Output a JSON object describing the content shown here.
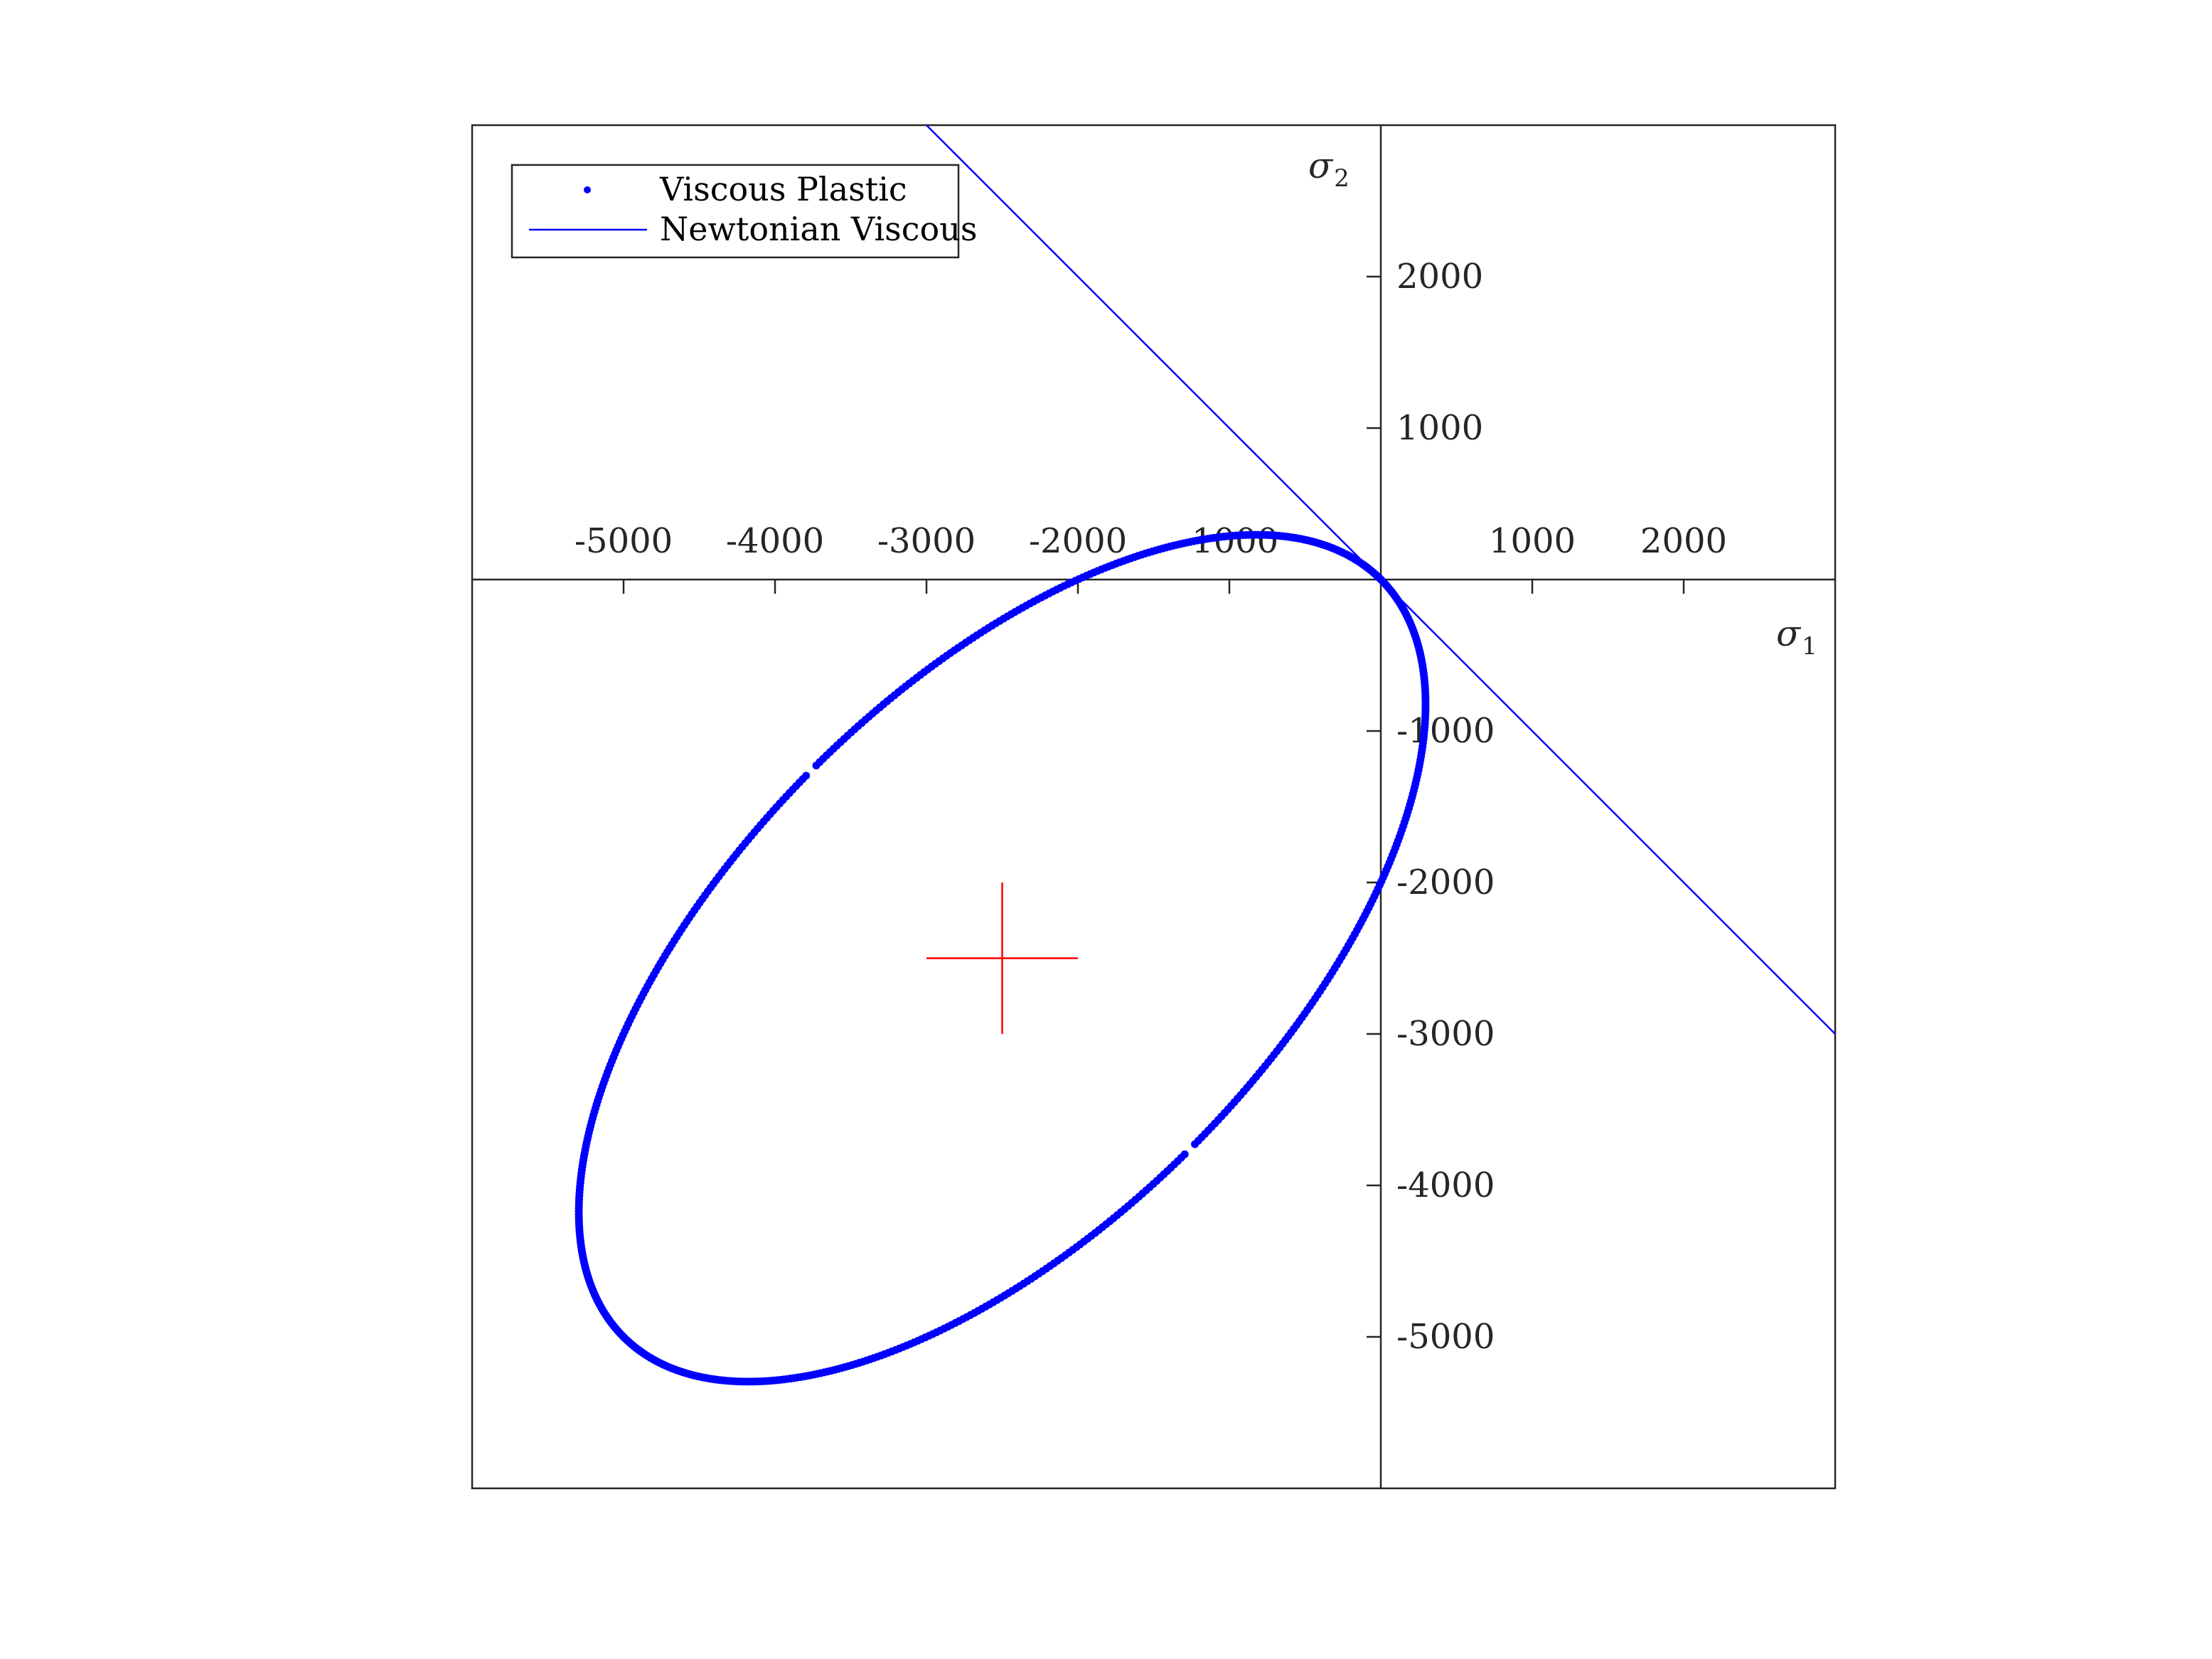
{
  "chart_data": {
    "type": "scatter",
    "title": "",
    "xlabel": "σ",
    "xlabel_subscript": "1",
    "ylabel": "σ",
    "ylabel_subscript": "2",
    "xlim": [
      -6000,
      3000
    ],
    "ylim": [
      -6000,
      3000
    ],
    "grid": false,
    "legend_position": "top-left",
    "x_ticks": [
      {
        "value": -5000,
        "label": "-5000"
      },
      {
        "value": -4000,
        "label": "-4000"
      },
      {
        "value": -3000,
        "label": "-3000"
      },
      {
        "value": -2000,
        "label": "-2000"
      },
      {
        "value": -1000,
        "label": "-1000"
      },
      {
        "value": 1000,
        "label": "1000"
      },
      {
        "value": 2000,
        "label": "2000"
      }
    ],
    "y_ticks": [
      {
        "value": 2000,
        "label": "2000"
      },
      {
        "value": 1000,
        "label": "1000"
      },
      {
        "value": -1000,
        "label": "-1000"
      },
      {
        "value": -2000,
        "label": "-2000"
      },
      {
        "value": -3000,
        "label": "-3000"
      },
      {
        "value": -4000,
        "label": "-4000"
      },
      {
        "value": -5000,
        "label": "-5000"
      }
    ],
    "series": [
      {
        "name": "Viscous Plastic",
        "kind": "scatter",
        "color": "#0000ff",
        "curve": "ellipse",
        "center": [
          -2500,
          -2500
        ],
        "semi_axis_major": 3536,
        "semi_axis_minor": 1768,
        "rotation_deg": 45,
        "gaps_near": [
          [
            -3780,
            -1230
          ],
          [
            -1230,
            -3780
          ]
        ]
      },
      {
        "name": "Newtonian Viscous",
        "kind": "line",
        "color": "#0000ff",
        "x": [
          -3000,
          3000
        ],
        "y": [
          3000,
          -3000
        ]
      }
    ],
    "annotations": [
      {
        "kind": "cross",
        "color": "#ff0000",
        "center": [
          -2500,
          -2500
        ],
        "half_length": 500
      }
    ]
  }
}
